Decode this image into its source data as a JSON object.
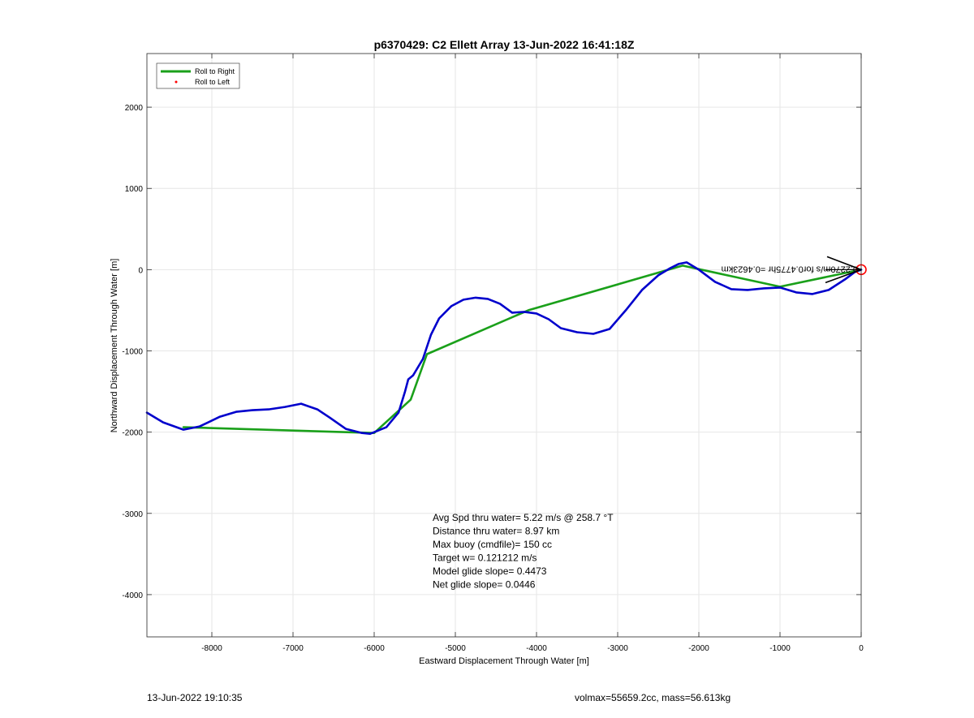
{
  "footer": {
    "left": "13-Jun-2022 19:10:35",
    "right": "volmax=55659.2cc, mass=56.613kg"
  },
  "chart_data": {
    "type": "line",
    "title": "p6370429: C2 Ellett Array 13-Jun-2022 16:41:18Z",
    "xlabel": "Eastward Displacement Through Water [m]",
    "ylabel": "Northward Displacement Through Water [m]",
    "xlim": [
      -8800,
      0
    ],
    "ylim": [
      -4520,
      2660
    ],
    "xticks": [
      -8000,
      -7000,
      -6000,
      -5000,
      -4000,
      -3000,
      -2000,
      -1000,
      0
    ],
    "yticks": [
      -4000,
      -3000,
      -2000,
      -1000,
      0,
      1000,
      2000
    ],
    "grid": true,
    "legend": {
      "placement": "top-left",
      "entries": [
        {
          "label": "Roll to Right",
          "color": "#1aa01a",
          "style": "line"
        },
        {
          "label": "Roll to Left",
          "color": "#ff0000",
          "style": "dot"
        }
      ]
    },
    "series": [
      {
        "name": "Roll to Right",
        "color": "#1aa01a",
        "x": [
          0,
          -1000,
          -2200,
          -4100,
          -5350,
          -5550,
          -6000,
          -8350
        ],
        "y": [
          0,
          -210,
          50,
          -500,
          -1040,
          -1600,
          -2010,
          -1940
        ]
      },
      {
        "color": "#0000cc",
        "x": [
          -8800,
          -8600,
          -8350,
          -8150,
          -7900,
          -7700,
          -7500,
          -7300,
          -7100,
          -6900,
          -6700,
          -6550,
          -6350,
          -6150,
          -6050,
          -5850,
          -5700,
          -5620,
          -5580,
          -5520,
          -5400,
          -5300,
          -5200,
          -5050,
          -4900,
          -4750,
          -4600,
          -4450,
          -4300,
          -4150,
          -4000,
          -3850,
          -3700,
          -3500,
          -3300,
          -3100,
          -2900,
          -2700,
          -2500,
          -2350,
          -2250,
          -2150,
          -2000,
          -1800,
          -1600,
          -1400,
          -1200,
          -1000,
          -800,
          -600,
          -400,
          -200,
          -80,
          0
        ],
        "y": [
          -1760,
          -1880,
          -1970,
          -1930,
          -1810,
          -1750,
          -1730,
          -1720,
          -1690,
          -1650,
          -1720,
          -1820,
          -1960,
          -2010,
          -2020,
          -1940,
          -1760,
          -1500,
          -1350,
          -1300,
          -1100,
          -800,
          -600,
          -450,
          -370,
          -345,
          -360,
          -420,
          -530,
          -520,
          -540,
          -610,
          -720,
          -770,
          -790,
          -730,
          -500,
          -250,
          -70,
          20,
          70,
          90,
          0,
          -150,
          -240,
          -250,
          -230,
          -220,
          -280,
          -300,
          -250,
          -120,
          -30,
          0
        ]
      }
    ],
    "markers": [
      {
        "x": 0,
        "y": 0,
        "shape": "circle",
        "color": "#ff0000"
      }
    ],
    "arrow_label": "0.2270m/s for0.4775hr =0.4623km",
    "annotations": [
      "Avg Spd thru water=  5.22 m/s @ 258.7 °T",
      "Distance thru water=  8.97 km",
      "Max buoy (cmdfile)= 150 cc",
      "Target w= 0.121212 m/s",
      "Model glide slope= 0.4473",
      "Net glide slope= 0.0446"
    ]
  }
}
